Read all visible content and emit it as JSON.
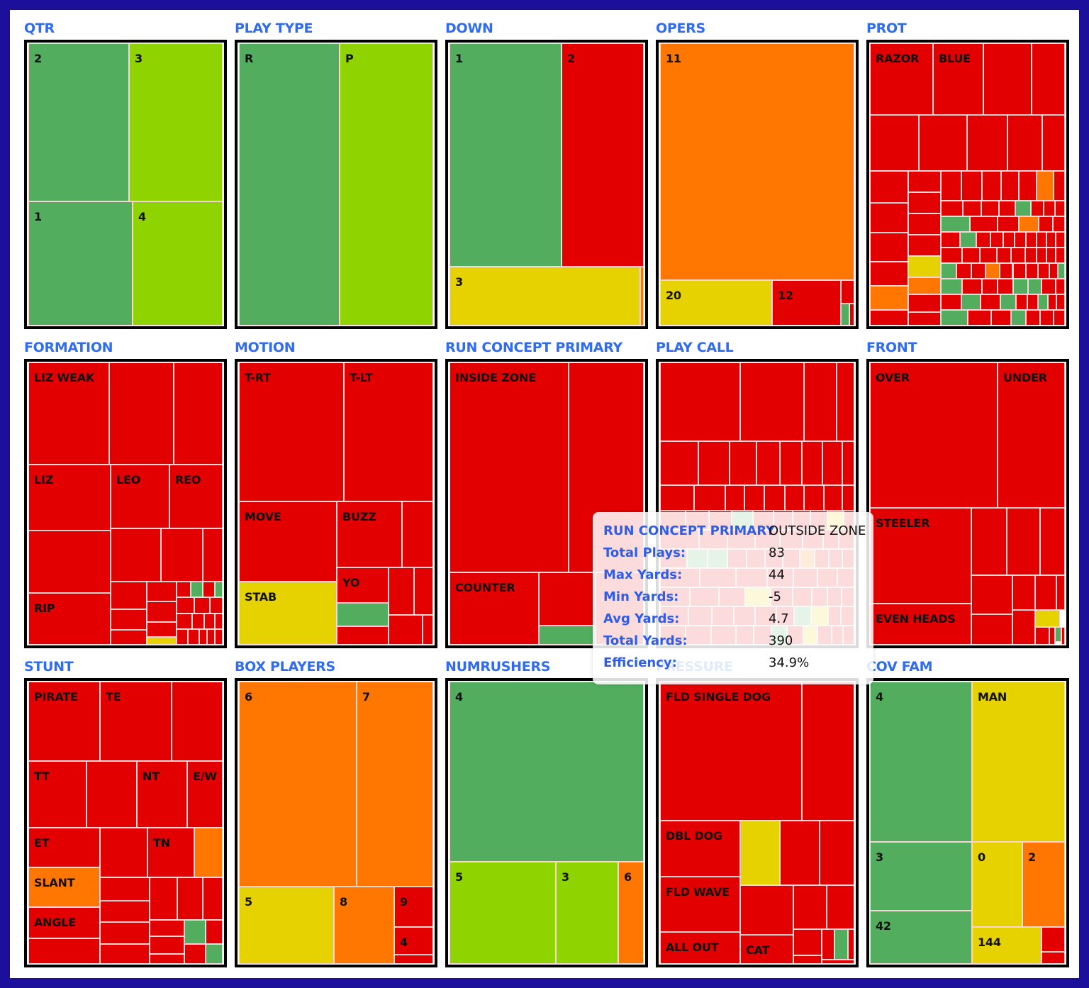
{
  "colors": {
    "green": "#52ad5e",
    "lime": "#8fd400",
    "yellow": "#e6d200",
    "orange": "#ff7700",
    "red": "#e30000",
    "title": "#2f6cf2",
    "frame": "#1c0f9c"
  },
  "panels": [
    {
      "title": "QTR",
      "labels": [
        "2",
        "3",
        "1",
        "4"
      ]
    },
    {
      "title": "PLAY TYPE",
      "labels": [
        "R",
        "P"
      ]
    },
    {
      "title": "DOWN",
      "labels": [
        "1",
        "2",
        "3"
      ]
    },
    {
      "title": "OPERS",
      "labels": [
        "11",
        "20",
        "12"
      ]
    },
    {
      "title": "PROT",
      "labels": [
        "RAZOR",
        "BLUE"
      ]
    },
    {
      "title": "FORMATION",
      "labels": [
        "LIZ WEAK",
        "LIZ",
        "LEO",
        "REO",
        "RIP"
      ]
    },
    {
      "title": "MOTION",
      "labels": [
        "T-RT",
        "T-LT",
        "MOVE",
        "STAB",
        "BUZZ",
        "YO"
      ]
    },
    {
      "title": "RUN CONCEPT PRIMARY",
      "labels": [
        "INSIDE ZONE",
        "COUNTER"
      ]
    },
    {
      "title": "PLAY CALL",
      "labels": []
    },
    {
      "title": "FRONT",
      "labels": [
        "OVER",
        "UNDER",
        "STEELER",
        "EVEN HEADS"
      ]
    },
    {
      "title": "STUNT",
      "labels": [
        "PIRATE",
        "TE",
        "TT",
        "NT",
        "E/W",
        "ET",
        "SLANT",
        "ANGLE",
        "TN"
      ]
    },
    {
      "title": "BOX PLAYERS",
      "labels": [
        "6",
        "7",
        "5",
        "8",
        "9",
        "4"
      ]
    },
    {
      "title": "NUMRUSHERS",
      "labels": [
        "4",
        "5",
        "3",
        "6"
      ]
    },
    {
      "title": "PRESSURE",
      "labels": [
        "FLD SINGLE DOG",
        "DBL DOG",
        "FLD WAVE",
        "ALL OUT",
        "CAT"
      ]
    },
    {
      "title": "COV FAM",
      "labels": [
        "4",
        "MAN",
        "3",
        "42",
        "0",
        "2",
        "144"
      ]
    }
  ],
  "tooltip": {
    "header_key": "RUN CONCEPT PRIMARY",
    "header_value": "OUTSIDE ZONE",
    "rows": [
      {
        "key": "Total Plays:",
        "value": "83"
      },
      {
        "key": "Max Yards:",
        "value": "44"
      },
      {
        "key": "Min Yards:",
        "value": "-5"
      },
      {
        "key": "Avg Yards:",
        "value": "4.7"
      },
      {
        "key": "Total Yards:",
        "value": "390"
      },
      {
        "key": "Efficiency:",
        "value": "34.9%"
      }
    ]
  }
}
